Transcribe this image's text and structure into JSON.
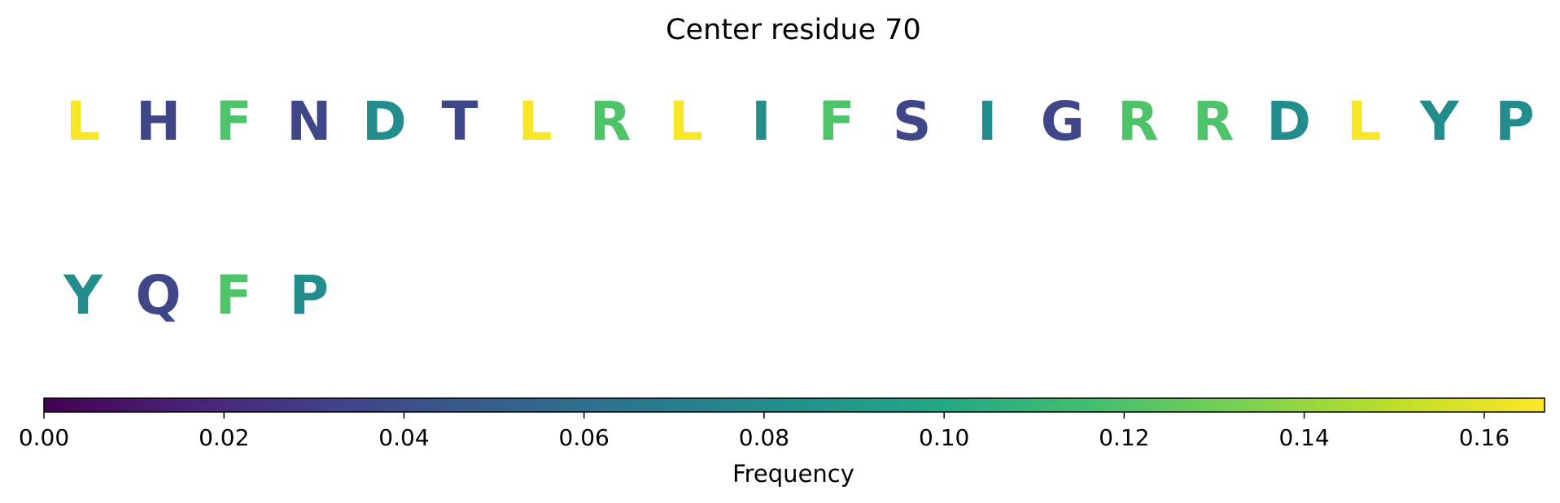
{
  "chart_data": {
    "type": "heatmap",
    "title": "Center residue 70",
    "colormap": "viridis",
    "residues": [
      {
        "letter": "L",
        "frequency": 0.165
      },
      {
        "letter": "H",
        "frequency": 0.035
      },
      {
        "letter": "F",
        "frequency": 0.12
      },
      {
        "letter": "N",
        "frequency": 0.035
      },
      {
        "letter": "D",
        "frequency": 0.08
      },
      {
        "letter": "T",
        "frequency": 0.035
      },
      {
        "letter": "L",
        "frequency": 0.165
      },
      {
        "letter": "R",
        "frequency": 0.12
      },
      {
        "letter": "L",
        "frequency": 0.165
      },
      {
        "letter": "I",
        "frequency": 0.08
      },
      {
        "letter": "F",
        "frequency": 0.12
      },
      {
        "letter": "S",
        "frequency": 0.035
      },
      {
        "letter": "I",
        "frequency": 0.08
      },
      {
        "letter": "G",
        "frequency": 0.035
      },
      {
        "letter": "R",
        "frequency": 0.12
      },
      {
        "letter": "R",
        "frequency": 0.12
      },
      {
        "letter": "D",
        "frequency": 0.08
      },
      {
        "letter": "L",
        "frequency": 0.165
      },
      {
        "letter": "Y",
        "frequency": 0.08
      },
      {
        "letter": "P",
        "frequency": 0.08
      },
      {
        "letter": "Y",
        "frequency": 0.08
      },
      {
        "letter": "Q",
        "frequency": 0.035
      },
      {
        "letter": "F",
        "frequency": 0.12
      },
      {
        "letter": "P",
        "frequency": 0.08
      }
    ],
    "letters_per_row": 20,
    "colorbar": {
      "label": "Frequency",
      "range": [
        0,
        0.1667
      ],
      "ticks": [
        0.0,
        0.02,
        0.04,
        0.06,
        0.08,
        0.1,
        0.12,
        0.14,
        0.16
      ],
      "tick_labels": [
        "0.00",
        "0.02",
        "0.04",
        "0.06",
        "0.08",
        "0.10",
        "0.12",
        "0.14",
        "0.16"
      ],
      "orientation": "horizontal",
      "location": "bottom"
    },
    "grid": false
  }
}
